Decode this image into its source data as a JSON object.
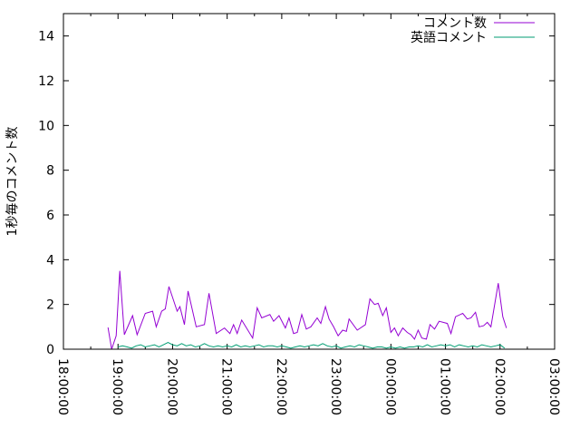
{
  "chart_data": {
    "type": "line",
    "title": "",
    "xlabel": "",
    "ylabel": "1秒毎のコメント数",
    "xlim": [
      "18:00:00",
      "03:00:00"
    ],
    "ylim": [
      0,
      15
    ],
    "x_ticks": [
      "18:00:00",
      "19:00:00",
      "20:00:00",
      "21:00:00",
      "22:00:00",
      "23:00:00",
      "00:00:00",
      "01:00:00",
      "02:00:00",
      "03:00:00"
    ],
    "y_ticks": [
      "0",
      "2",
      "4",
      "6",
      "8",
      "10",
      "12",
      "14"
    ],
    "grid": false,
    "legend_position": "top-right",
    "series": [
      {
        "name": "コメント数",
        "color": "#9400d3",
        "points": [
          [
            "18:49",
            0.97
          ],
          [
            "18:53",
            0
          ],
          [
            "18:58",
            0.6
          ],
          [
            "19:02",
            3.5
          ],
          [
            "19:07",
            0.65
          ],
          [
            "19:16",
            1.5
          ],
          [
            "19:21",
            0.65
          ],
          [
            "19:30",
            1.6
          ],
          [
            "19:38",
            1.7
          ],
          [
            "19:42",
            1.0
          ],
          [
            "19:48",
            1.7
          ],
          [
            "19:52",
            1.8
          ],
          [
            "19:56",
            2.8
          ],
          [
            "20:05",
            1.7
          ],
          [
            "20:08",
            1.9
          ],
          [
            "20:13",
            1.1
          ],
          [
            "20:17",
            2.6
          ],
          [
            "20:26",
            1.0
          ],
          [
            "20:35",
            1.1
          ],
          [
            "20:40",
            2.5
          ],
          [
            "20:48",
            0.7
          ],
          [
            "20:57",
            0.95
          ],
          [
            "21:03",
            0.7
          ],
          [
            "21:07",
            1.1
          ],
          [
            "21:11",
            0.7
          ],
          [
            "21:16",
            1.3
          ],
          [
            "21:28",
            0.5
          ],
          [
            "21:33",
            1.85
          ],
          [
            "21:38",
            1.4
          ],
          [
            "21:47",
            1.55
          ],
          [
            "21:51",
            1.25
          ],
          [
            "21:57",
            1.5
          ],
          [
            "22:04",
            0.95
          ],
          [
            "22:08",
            1.4
          ],
          [
            "22:13",
            0.7
          ],
          [
            "22:17",
            0.75
          ],
          [
            "22:22",
            1.55
          ],
          [
            "22:27",
            0.9
          ],
          [
            "22:32",
            1.0
          ],
          [
            "22:39",
            1.4
          ],
          [
            "22:43",
            1.15
          ],
          [
            "22:48",
            1.9
          ],
          [
            "22:52",
            1.35
          ],
          [
            "22:57",
            1.0
          ],
          [
            "23:02",
            0.6
          ],
          [
            "23:07",
            0.85
          ],
          [
            "23:11",
            0.8
          ],
          [
            "23:14",
            1.35
          ],
          [
            "23:23",
            0.85
          ],
          [
            "23:32",
            1.1
          ],
          [
            "23:37",
            2.25
          ],
          [
            "23:42",
            2.0
          ],
          [
            "23:46",
            2.05
          ],
          [
            "23:51",
            1.5
          ],
          [
            "23:55",
            1.85
          ],
          [
            "00:00",
            0.75
          ],
          [
            "00:04",
            0.95
          ],
          [
            "00:08",
            0.6
          ],
          [
            "00:13",
            0.95
          ],
          [
            "00:18",
            0.75
          ],
          [
            "00:22",
            0.65
          ],
          [
            "00:26",
            0.45
          ],
          [
            "00:30",
            0.85
          ],
          [
            "00:34",
            0.5
          ],
          [
            "00:39",
            0.45
          ],
          [
            "00:43",
            1.1
          ],
          [
            "00:48",
            0.9
          ],
          [
            "00:53",
            1.25
          ],
          [
            "01:02",
            1.15
          ],
          [
            "01:06",
            0.7
          ],
          [
            "01:11",
            1.45
          ],
          [
            "01:19",
            1.6
          ],
          [
            "01:24",
            1.35
          ],
          [
            "01:28",
            1.4
          ],
          [
            "01:33",
            1.65
          ],
          [
            "01:37",
            1.0
          ],
          [
            "01:42",
            1.05
          ],
          [
            "01:46",
            1.2
          ],
          [
            "01:50",
            1.0
          ],
          [
            "01:58",
            2.95
          ],
          [
            "02:03",
            1.45
          ],
          [
            "02:07",
            0.95
          ]
        ]
      },
      {
        "name": "英語コメント",
        "color": "#009e73",
        "points": [
          [
            "19:00",
            0.1
          ],
          [
            "19:05",
            0.15
          ],
          [
            "19:10",
            0.1
          ],
          [
            "19:15",
            0.05
          ],
          [
            "19:20",
            0.15
          ],
          [
            "19:25",
            0.2
          ],
          [
            "19:30",
            0.1
          ],
          [
            "19:35",
            0.15
          ],
          [
            "19:40",
            0.2
          ],
          [
            "19:45",
            0.1
          ],
          [
            "19:50",
            0.2
          ],
          [
            "19:55",
            0.3
          ],
          [
            "20:00",
            0.2
          ],
          [
            "20:05",
            0.15
          ],
          [
            "20:10",
            0.25
          ],
          [
            "20:15",
            0.15
          ],
          [
            "20:20",
            0.2
          ],
          [
            "20:25",
            0.1
          ],
          [
            "20:30",
            0.15
          ],
          [
            "20:35",
            0.25
          ],
          [
            "20:40",
            0.15
          ],
          [
            "20:45",
            0.1
          ],
          [
            "20:50",
            0.15
          ],
          [
            "20:55",
            0.1
          ],
          [
            "21:00",
            0.15
          ],
          [
            "21:05",
            0.1
          ],
          [
            "21:10",
            0.2
          ],
          [
            "21:15",
            0.1
          ],
          [
            "21:20",
            0.15
          ],
          [
            "21:25",
            0.1
          ],
          [
            "21:30",
            0.15
          ],
          [
            "21:35",
            0.2
          ],
          [
            "21:40",
            0.1
          ],
          [
            "21:45",
            0.15
          ],
          [
            "21:50",
            0.15
          ],
          [
            "21:55",
            0.1
          ],
          [
            "22:00",
            0.15
          ],
          [
            "22:05",
            0.1
          ],
          [
            "22:10",
            0.05
          ],
          [
            "22:15",
            0.1
          ],
          [
            "22:20",
            0.15
          ],
          [
            "22:25",
            0.1
          ],
          [
            "22:30",
            0.15
          ],
          [
            "22:35",
            0.2
          ],
          [
            "22:40",
            0.15
          ],
          [
            "22:45",
            0.25
          ],
          [
            "22:50",
            0.15
          ],
          [
            "22:55",
            0.1
          ],
          [
            "23:00",
            0.15
          ],
          [
            "23:05",
            0.05
          ],
          [
            "23:10",
            0.1
          ],
          [
            "23:15",
            0.15
          ],
          [
            "23:20",
            0.1
          ],
          [
            "23:25",
            0.2
          ],
          [
            "23:30",
            0.15
          ],
          [
            "23:35",
            0.1
          ],
          [
            "23:40",
            0.05
          ],
          [
            "23:45",
            0.1
          ],
          [
            "23:50",
            0.1
          ],
          [
            "23:55",
            0.05
          ],
          [
            "00:00",
            0.1
          ],
          [
            "00:05",
            0.05
          ],
          [
            "00:10",
            0.1
          ],
          [
            "00:15",
            0.05
          ],
          [
            "00:20",
            0.1
          ],
          [
            "00:25",
            0.1
          ],
          [
            "00:30",
            0.15
          ],
          [
            "00:35",
            0.1
          ],
          [
            "00:40",
            0.2
          ],
          [
            "00:45",
            0.1
          ],
          [
            "00:50",
            0.15
          ],
          [
            "00:55",
            0.2
          ],
          [
            "01:00",
            0.15
          ],
          [
            "01:05",
            0.2
          ],
          [
            "01:10",
            0.1
          ],
          [
            "01:15",
            0.2
          ],
          [
            "01:20",
            0.15
          ],
          [
            "01:25",
            0.1
          ],
          [
            "01:30",
            0.15
          ],
          [
            "01:35",
            0.1
          ],
          [
            "01:40",
            0.2
          ],
          [
            "01:45",
            0.15
          ],
          [
            "01:50",
            0.1
          ],
          [
            "01:55",
            0.15
          ],
          [
            "02:00",
            0.2
          ],
          [
            "02:05",
            0.05
          ]
        ]
      }
    ]
  }
}
